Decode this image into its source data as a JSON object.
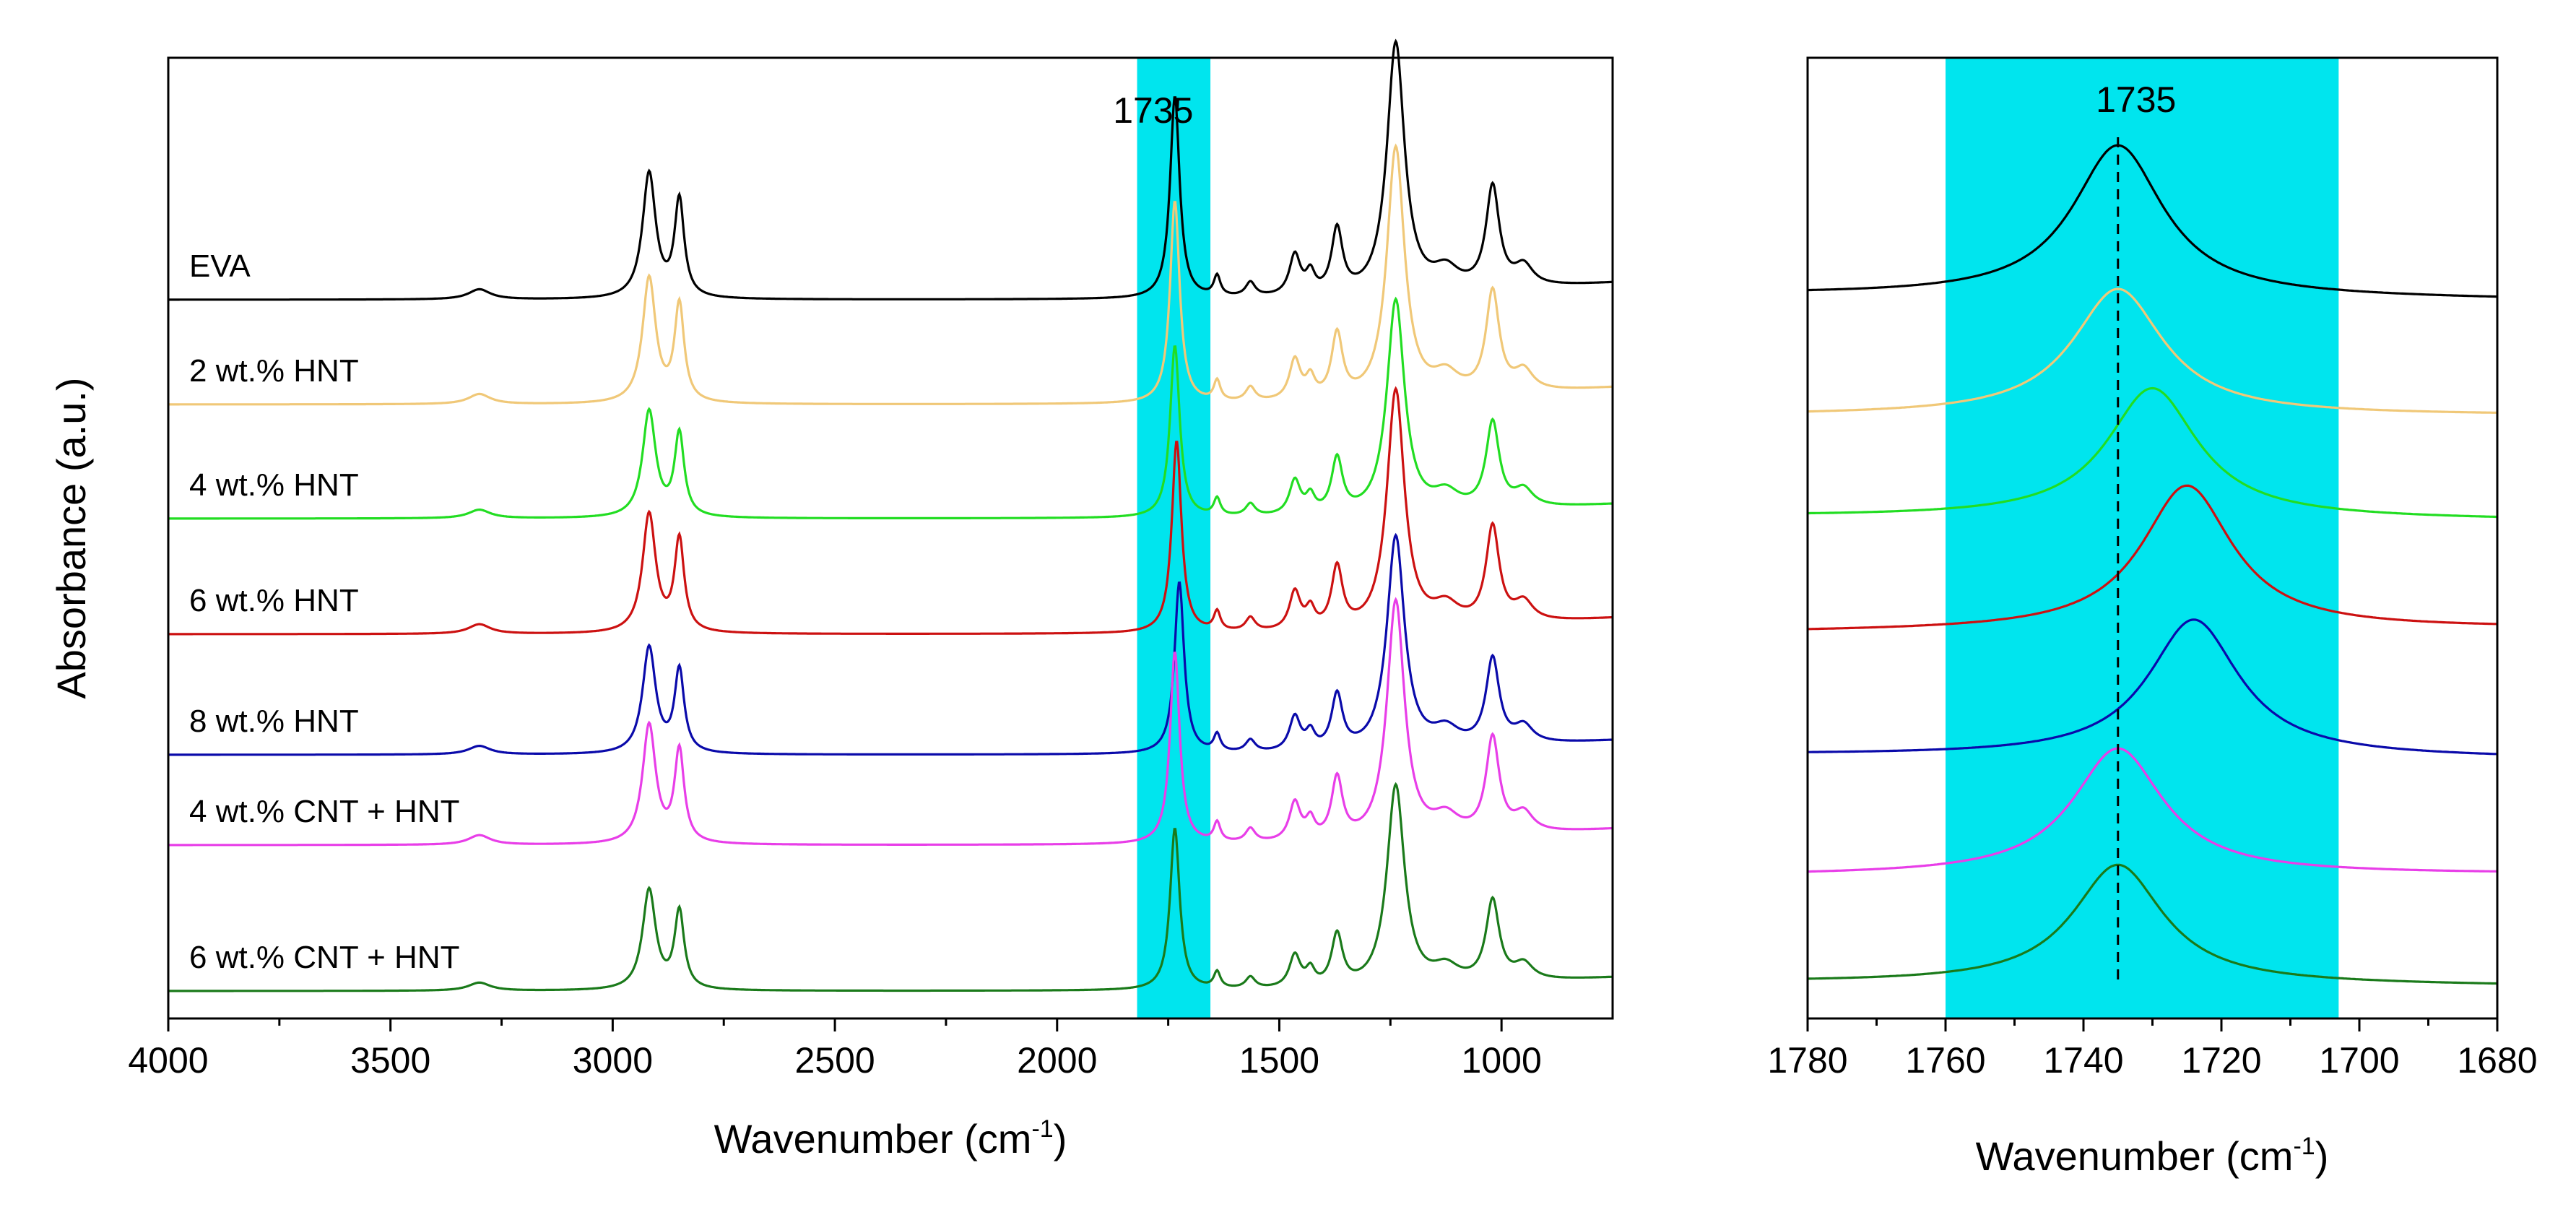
{
  "chart_data": [
    {
      "type": "line",
      "title": "",
      "xlabel": "Wavenumber (cm",
      "xlabel_sup": "-1",
      "xlabel_close": ")",
      "ylabel": "Absorbance  (a.u.)",
      "xlim": [
        4000,
        750
      ],
      "x_ticks": [
        4000,
        3500,
        3000,
        2500,
        2000,
        1500,
        1000
      ],
      "x_tick_labels": [
        "4000",
        "3500",
        "3000",
        "2500",
        "2000",
        "1500",
        "1000"
      ],
      "highlight_band": [
        1820,
        1655
      ],
      "highlight_color": "#00e5ee",
      "annotation": {
        "text": "1735",
        "x": 1735
      },
      "peaks": [
        {
          "center": 3300,
          "width": 30,
          "height": 0.05
        },
        {
          "center": 2918,
          "width": 18,
          "height": 0.62
        },
        {
          "center": 2850,
          "width": 13,
          "height": 0.48
        },
        {
          "center": 1735,
          "width": 13,
          "height": 1.0
        },
        {
          "center": 1640,
          "width": 9,
          "height": 0.1
        },
        {
          "center": 1565,
          "width": 13,
          "height": 0.07
        },
        {
          "center": 1465,
          "width": 15,
          "height": 0.2
        },
        {
          "center": 1430,
          "width": 12,
          "height": 0.1
        },
        {
          "center": 1370,
          "width": 15,
          "height": 0.32
        },
        {
          "center": 1238,
          "width": 24,
          "height": 1.25
        },
        {
          "center": 1125,
          "width": 35,
          "height": 0.1
        },
        {
          "center": 1020,
          "width": 18,
          "height": 0.5
        },
        {
          "center": 950,
          "width": 25,
          "height": 0.1
        }
      ],
      "series": [
        {
          "name": "EVA",
          "color": "#000000",
          "baseline": 0.0,
          "scale": 1.0
        },
        {
          "name": "2 wt.% HNT",
          "color": "#f0c878",
          "baseline": 0.0,
          "scale": 1.0
        },
        {
          "name": "4 wt.% HNT",
          "color": "#22dd22",
          "baseline": 0.0,
          "scale": 0.85
        },
        {
          "name": "6 wt.% HNT",
          "color": "#cc1111",
          "baseline": 0.0,
          "scale": 0.95
        },
        {
          "name": "8 wt.% HNT",
          "color": "#0a0aaa",
          "baseline": 0.0,
          "scale": 0.85
        },
        {
          "name": "4 wt.% CNT + HNT",
          "color": "#e83ee8",
          "baseline": 0.0,
          "scale": 0.95
        },
        {
          "name": "6 wt.% CNT + HNT",
          "color": "#1a7a1a",
          "baseline": 0.0,
          "scale": 0.8
        }
      ]
    },
    {
      "type": "line",
      "title": "",
      "xlabel": "Wavenumber (cm",
      "xlabel_sup": "-1",
      "xlabel_close": ")",
      "xlim": [
        1780,
        1680
      ],
      "x_ticks": [
        1780,
        1760,
        1740,
        1720,
        1700,
        1680
      ],
      "x_tick_labels": [
        "1780",
        "1760",
        "1740",
        "1720",
        "1700",
        "1680"
      ],
      "highlight_band": [
        1760,
        1703
      ],
      "highlight_color": "#00e5ee",
      "annotation": {
        "text": "1735",
        "x": 1735
      },
      "series": [
        {
          "name": "EVA",
          "color": "#000000",
          "peak_center": 1735,
          "peak_width": 8
        },
        {
          "name": "2 wt.% HNT",
          "color": "#f0c878",
          "peak_center": 1735,
          "peak_width": 8
        },
        {
          "name": "4 wt.% HNT",
          "color": "#22dd22",
          "peak_center": 1730,
          "peak_width": 8
        },
        {
          "name": "6 wt.% HNT",
          "color": "#cc1111",
          "peak_center": 1725,
          "peak_width": 8
        },
        {
          "name": "8 wt.% HNT",
          "color": "#0a0aaa",
          "peak_center": 1724,
          "peak_width": 8
        },
        {
          "name": "4 wt.% CNT + HNT",
          "color": "#e83ee8",
          "peak_center": 1735,
          "peak_width": 8
        },
        {
          "name": "6 wt.% CNT + HNT",
          "color": "#1a7a1a",
          "peak_center": 1735,
          "peak_width": 8
        }
      ]
    }
  ]
}
